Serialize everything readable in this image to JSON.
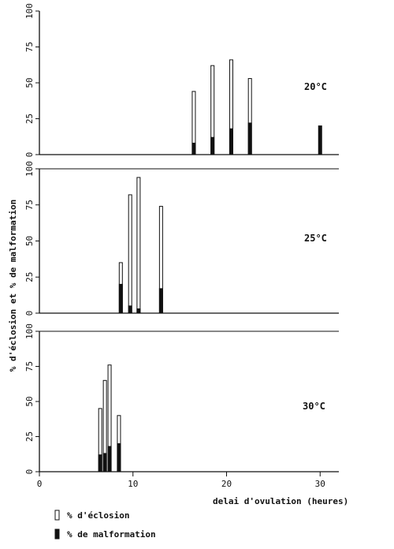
{
  "chart_data": {
    "type": "bar",
    "xlabel": "delai d'ovulation (heures)",
    "ylabel": "% d'éclosion et % de malformation",
    "xlim": [
      0,
      32
    ],
    "ylim": [
      0,
      100
    ],
    "xticks": [
      0,
      10,
      20,
      30
    ],
    "yticks": [
      0,
      25,
      50,
      75,
      100
    ],
    "grid": false,
    "legend_position": "bottom-left",
    "legend": [
      {
        "key": "eclosion",
        "label": "% d'éclosion",
        "style": "hollow",
        "color": "#ffffff"
      },
      {
        "key": "malformation",
        "label": "% de malformation",
        "style": "filled",
        "color": "#111111"
      }
    ],
    "panels": [
      {
        "label": "20°C",
        "x": [
          16.5,
          18.5,
          20.5,
          22.5,
          30
        ],
        "eclosion": [
          44,
          62,
          66,
          53,
          null
        ],
        "malformation": [
          8,
          12,
          18,
          22,
          20
        ]
      },
      {
        "label": "25°C",
        "x": [
          8.7,
          9.7,
          10.6,
          13.0
        ],
        "eclosion": [
          35,
          82,
          94,
          74
        ],
        "malformation": [
          20,
          5,
          3,
          17
        ]
      },
      {
        "label": "30°C",
        "x": [
          6.5,
          7.0,
          7.5,
          8.5
        ],
        "eclosion": [
          45,
          65,
          76,
          40
        ],
        "malformation": [
          12,
          13,
          18,
          20
        ]
      }
    ]
  }
}
